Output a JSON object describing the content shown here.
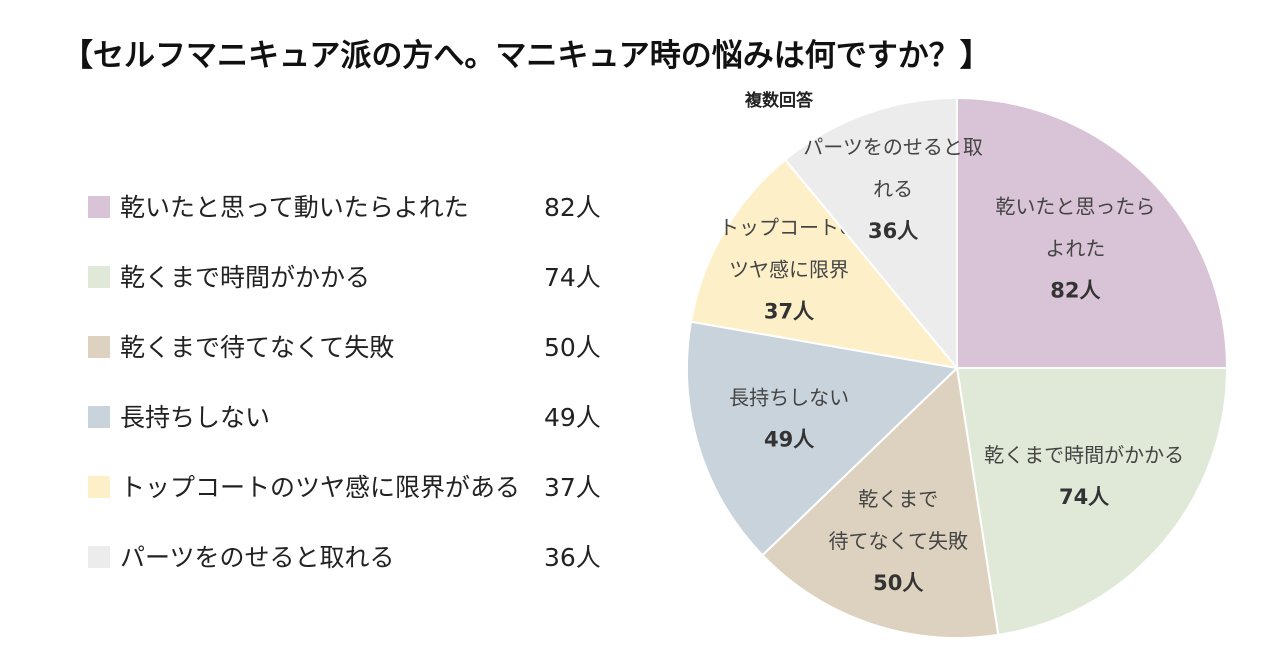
{
  "chart_data": {
    "type": "pie",
    "title": "【セルフマニキュア派の方へ。マニキュア時の悩みは何ですか？】",
    "subtitle": "複数回答",
    "unit": "人",
    "slices": [
      {
        "label": "乾いたと思って動いたらよれた",
        "value": 82,
        "value_text": "82人",
        "pie_label": [
          "乾いたと思ったら",
          "よれた"
        ],
        "color": "#d9c3d6"
      },
      {
        "label": "乾くまで時間がかかる",
        "value": 74,
        "value_text": "74人",
        "pie_label": [
          "乾くまで時間がかかる"
        ],
        "color": "#e0e9d8"
      },
      {
        "label": "乾くまで待てなくて失敗",
        "value": 50,
        "value_text": "50人",
        "pie_label": [
          "乾くまで",
          "待てなくて失敗"
        ],
        "color": "#ddd2bf"
      },
      {
        "label": "長持ちしない",
        "value": 49,
        "value_text": "49人",
        "pie_label": [
          "長持ちしない"
        ],
        "color": "#c9d3dc"
      },
      {
        "label": "トップコートのツヤ感に限界がある",
        "value": 37,
        "value_text": "37人",
        "pie_label": [
          "トップコートの",
          "ツヤ感に限界"
        ],
        "color": "#fdefc8"
      },
      {
        "label": "パーツをのせると取れる",
        "value": 36,
        "value_text": "36人",
        "pie_label": [
          "パーツをのせると取",
          "れる"
        ],
        "color": "#ececec"
      }
    ],
    "legend_placement": "left"
  }
}
